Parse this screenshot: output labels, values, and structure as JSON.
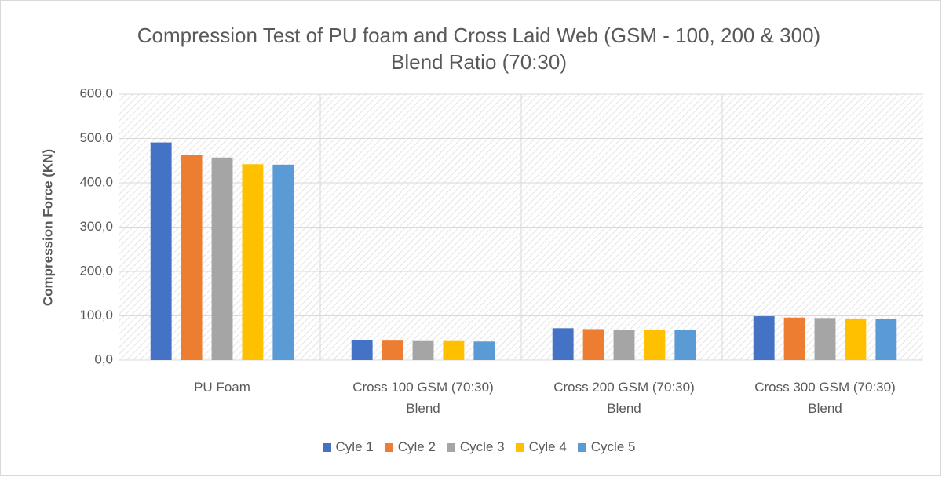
{
  "chart_data": {
    "type": "bar",
    "title": "Compression Test of PU foam and Cross Laid Web (GSM - 100, 200 & 300)\nBlend Ratio (70:30)",
    "y_label": "Compression Force (KN)",
    "categories": [
      "PU Foam",
      "Cross 100 GSM (70:30)\nBlend",
      "Cross 200 GSM (70:30)\nBlend",
      "Cross 300 GSM (70:30)\nBlend"
    ],
    "series": [
      {
        "name": "Cyle 1",
        "color": "#4472c4",
        "values": [
          491,
          46,
          72,
          99
        ]
      },
      {
        "name": "Cyle 2",
        "color": "#ed7d31",
        "values": [
          462,
          44,
          70,
          96
        ]
      },
      {
        "name": "Cycle 3",
        "color": "#a5a5a5",
        "values": [
          457,
          43,
          69,
          95
        ]
      },
      {
        "name": "Cyle 4",
        "color": "#ffc000",
        "values": [
          442,
          43,
          68,
          94
        ]
      },
      {
        "name": "Cycle 5",
        "color": "#5b9bd5",
        "values": [
          441,
          42,
          68,
          93
        ]
      }
    ],
    "ylim": [
      0,
      600
    ],
    "yticks": [
      {
        "value": 0,
        "label": "0,0"
      },
      {
        "value": 100,
        "label": "100,0"
      },
      {
        "value": 200,
        "label": "200,0"
      },
      {
        "value": 300,
        "label": "300,0"
      },
      {
        "value": 400,
        "label": "400,0"
      },
      {
        "value": 500,
        "label": "500,0"
      },
      {
        "value": 600,
        "label": "600,0"
      }
    ],
    "grid": true,
    "legend": "bottom"
  }
}
